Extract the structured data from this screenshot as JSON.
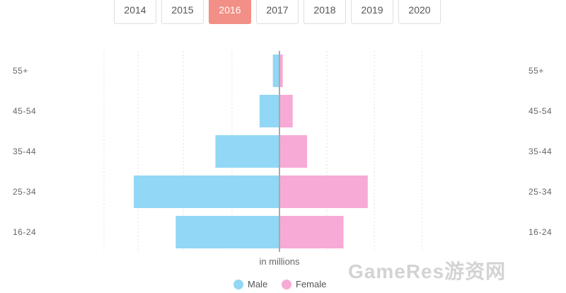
{
  "year_selector": {
    "years": [
      "2014",
      "2015",
      "2016",
      "2017",
      "2018",
      "2019",
      "2020"
    ],
    "selected": "2016"
  },
  "chart_data": {
    "type": "bar",
    "orientation": "horizontal-diverging",
    "title": "",
    "categories": [
      "55+",
      "45-54",
      "35-44",
      "25-34",
      "16-24"
    ],
    "series": [
      {
        "name": "Male",
        "values": [
          0.6,
          1.8,
          5.8,
          13.2,
          9.4
        ],
        "color": "#92d7f5",
        "direction": "left"
      },
      {
        "name": "Female",
        "values": [
          0.3,
          1.2,
          2.5,
          8.0,
          5.8
        ],
        "color": "#f7aad6",
        "direction": "right"
      }
    ],
    "xlabel": "in millions",
    "ylabel": "",
    "xlim": [
      -15,
      15
    ],
    "grid": true,
    "legend_position": "bottom-center"
  },
  "watermark": "GameRes游资网"
}
